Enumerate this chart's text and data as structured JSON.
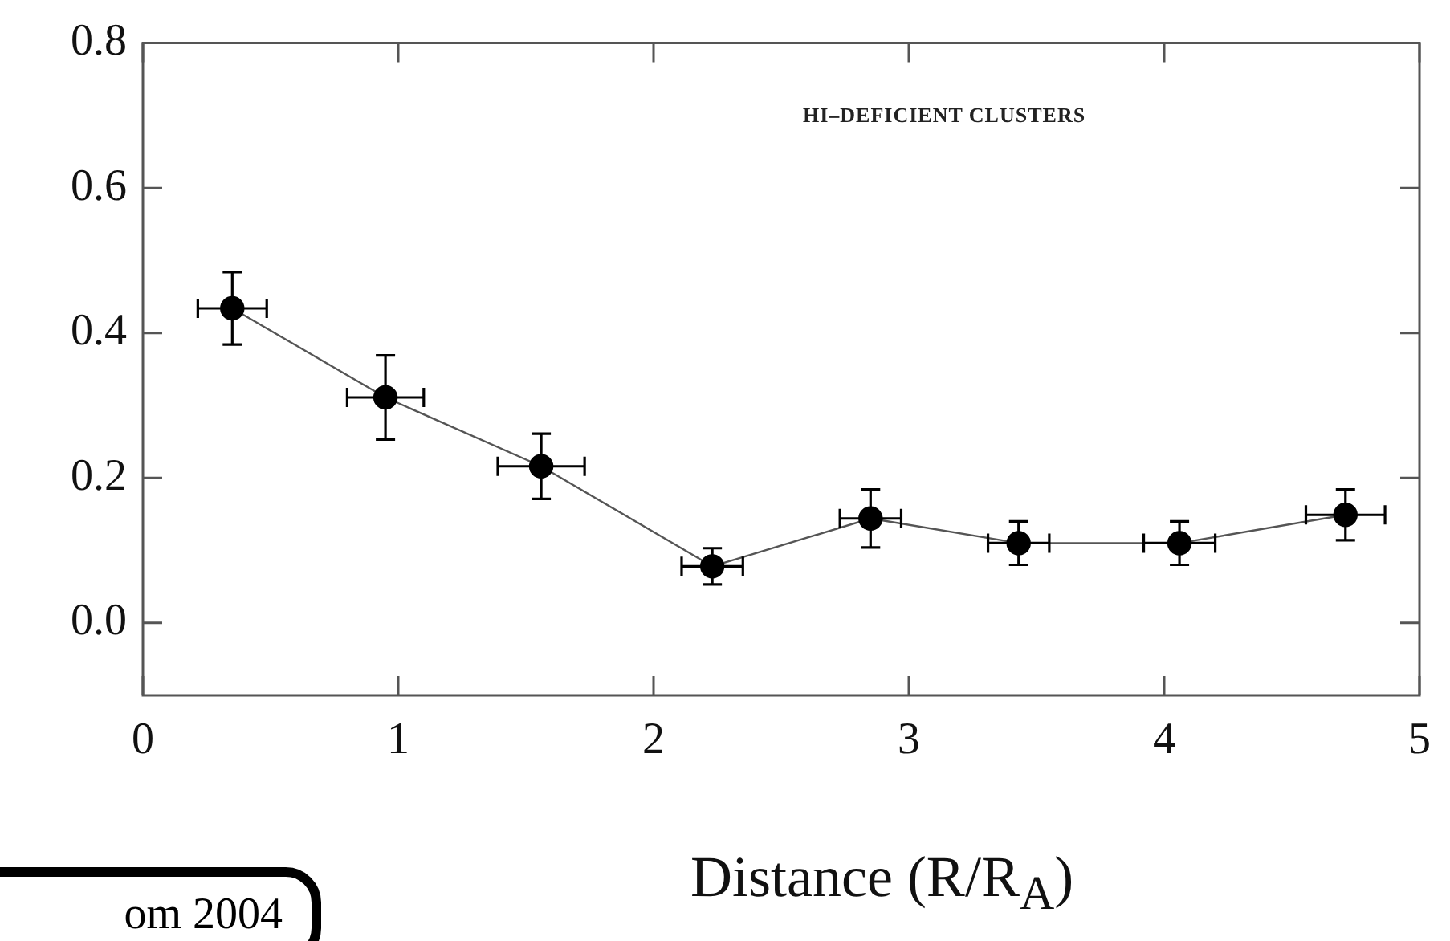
{
  "chart_data": {
    "type": "line",
    "xlabel": "Distance (R/R$_{A}$)",
    "x": [
      0.35,
      0.95,
      1.56,
      2.23,
      2.85,
      3.43,
      4.06,
      4.71
    ],
    "values": [
      0.434,
      0.311,
      0.216,
      0.078,
      0.144,
      0.11,
      0.11,
      0.149
    ],
    "errors": [
      0.05,
      0.058,
      0.045,
      0.025,
      0.04,
      0.03,
      0.03,
      0.035
    ],
    "xerrors": [
      0.135,
      0.15,
      0.17,
      0.12,
      0.12,
      0.12,
      0.14,
      0.155
    ],
    "color": "#000000",
    "xlim": [
      0,
      5
    ],
    "xticks": [
      0,
      1,
      2,
      3,
      4,
      5
    ],
    "ylim": [
      -0.1,
      0.8
    ],
    "yticks": [
      {
        "value": 0,
        "label": "0.0"
      },
      {
        "value": 0.2,
        "label": "0.2"
      },
      {
        "value": 0.4,
        "label": "0.4"
      },
      {
        "value": 0.6,
        "label": "0.6"
      },
      {
        "value": 0.8,
        "label": "0.8"
      }
    ],
    "grid": false,
    "legend": false,
    "marker": "circle",
    "line_style": "solid",
    "annotations": [
      "HI–DEFICIENT CLUSTERS",
      "om 2004"
    ]
  }
}
